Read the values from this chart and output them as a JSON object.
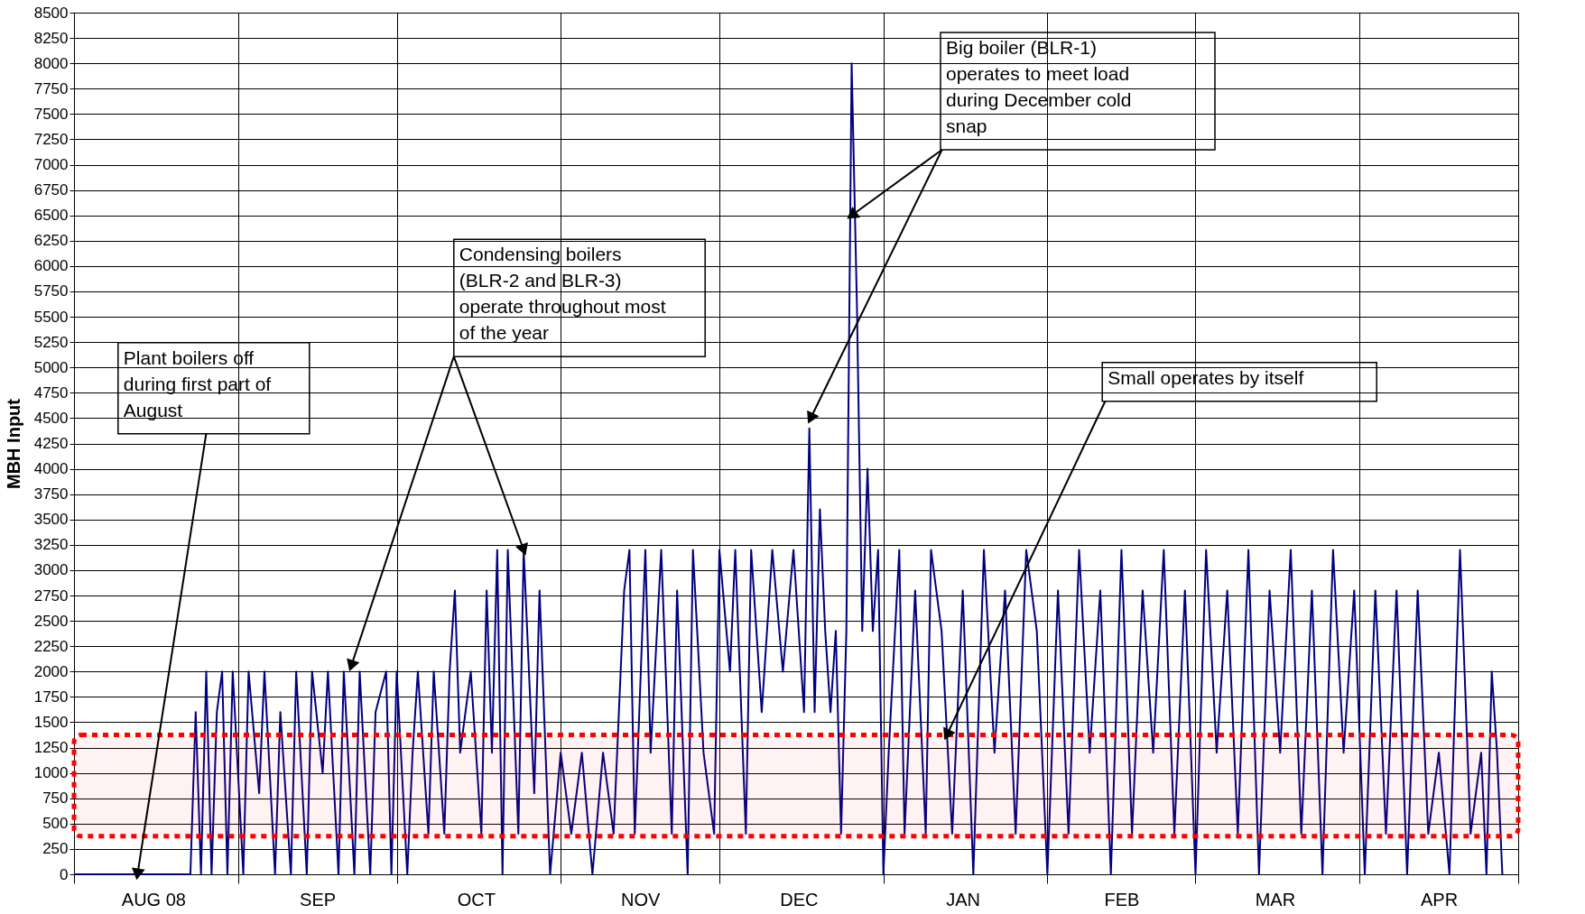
{
  "chart_data": {
    "type": "line",
    "ylabel": "MBH Input",
    "xlim": [
      "2008-08-01",
      "2009-05-01"
    ],
    "xticks": [
      {
        "value": "2008-08-01",
        "label": null
      },
      {
        "value": "2008-08-16",
        "label": "AUG 08"
      },
      {
        "value": "2008-09-01",
        "label": null
      },
      {
        "value": "2008-09-16",
        "label": "SEP"
      },
      {
        "value": "2008-10-01",
        "label": null
      },
      {
        "value": "2008-10-16",
        "label": "OCT"
      },
      {
        "value": "2008-11-01",
        "label": null
      },
      {
        "value": "2008-11-16",
        "label": "NOV"
      },
      {
        "value": "2008-12-01",
        "label": null
      },
      {
        "value": "2008-12-16",
        "label": "DEC"
      },
      {
        "value": "2009-01-01",
        "label": null
      },
      {
        "value": "2009-01-16",
        "label": "JAN"
      },
      {
        "value": "2009-02-01",
        "label": null
      },
      {
        "value": "2009-02-15",
        "label": "FEB"
      },
      {
        "value": "2009-03-01",
        "label": null
      },
      {
        "value": "2009-03-16",
        "label": "MAR"
      },
      {
        "value": "2009-04-01",
        "label": null
      },
      {
        "value": "2009-04-16",
        "label": "APR"
      },
      {
        "value": "2009-05-01",
        "label": null
      }
    ],
    "ylim": [
      0,
      8500
    ],
    "yticks": [
      0,
      250,
      500,
      750,
      1000,
      1250,
      1500,
      1750,
      2000,
      2250,
      2500,
      2750,
      3000,
      3250,
      3500,
      3750,
      4000,
      4250,
      4500,
      4750,
      5000,
      5250,
      5500,
      5750,
      6000,
      6250,
      6500,
      6750,
      7000,
      7250,
      7500,
      7750,
      8000,
      8250,
      8500
    ],
    "grid": true,
    "marker": "none",
    "line_style": "solid",
    "series": [
      {
        "color": "#000080",
        "x": [
          "2008-08-01",
          "2008-08-23",
          "2008-08-24",
          "2008-08-25",
          "2008-08-26",
          "2008-08-27",
          "2008-08-28",
          "2008-08-29",
          "2008-08-30",
          "2008-08-31",
          "2008-09-02",
          "2008-09-03",
          "2008-09-05",
          "2008-09-06",
          "2008-09-08",
          "2008-09-09",
          "2008-09-11",
          "2008-09-12",
          "2008-09-14",
          "2008-09-15",
          "2008-09-17",
          "2008-09-18",
          "2008-09-20",
          "2008-09-21",
          "2008-09-23",
          "2008-09-24",
          "2008-09-26",
          "2008-09-27",
          "2008-09-29",
          "2008-09-30",
          "2008-10-01",
          "2008-10-03",
          "2008-10-04",
          "2008-10-05",
          "2008-10-07",
          "2008-10-08",
          "2008-10-10",
          "2008-10-11",
          "2008-10-12",
          "2008-10-13",
          "2008-10-15",
          "2008-10-17",
          "2008-10-18",
          "2008-10-19",
          "2008-10-20",
          "2008-10-21",
          "2008-10-22",
          "2008-10-24",
          "2008-10-25",
          "2008-10-27",
          "2008-10-28",
          "2008-10-30",
          "2008-11-01",
          "2008-11-03",
          "2008-11-05",
          "2008-11-07",
          "2008-11-09",
          "2008-11-11",
          "2008-11-13",
          "2008-11-14",
          "2008-11-15",
          "2008-11-17",
          "2008-11-18",
          "2008-11-20",
          "2008-11-22",
          "2008-11-23",
          "2008-11-25",
          "2008-11-26",
          "2008-11-28",
          "2008-11-30",
          "2008-12-01",
          "2008-12-03",
          "2008-12-04",
          "2008-12-06",
          "2008-12-07",
          "2008-12-09",
          "2008-12-11",
          "2008-12-13",
          "2008-12-15",
          "2008-12-17",
          "2008-12-18",
          "2008-12-19",
          "2008-12-20",
          "2008-12-21",
          "2008-12-22",
          "2008-12-23",
          "2008-12-24",
          "2008-12-25",
          "2008-12-26",
          "2008-12-27",
          "2008-12-28",
          "2008-12-29",
          "2008-12-30",
          "2008-12-31",
          "2009-01-01",
          "2009-01-02",
          "2009-01-04",
          "2009-01-05",
          "2009-01-07",
          "2009-01-09",
          "2009-01-10",
          "2009-01-12",
          "2009-01-14",
          "2009-01-16",
          "2009-01-18",
          "2009-01-20",
          "2009-01-22",
          "2009-01-24",
          "2009-01-26",
          "2009-01-28",
          "2009-01-30",
          "2009-02-01",
          "2009-02-03",
          "2009-02-05",
          "2009-02-07",
          "2009-02-09",
          "2009-02-11",
          "2009-02-13",
          "2009-02-15",
          "2009-02-17",
          "2009-02-19",
          "2009-02-21",
          "2009-02-23",
          "2009-02-25",
          "2009-02-27",
          "2009-03-01",
          "2009-03-03",
          "2009-03-05",
          "2009-03-07",
          "2009-03-09",
          "2009-03-11",
          "2009-03-13",
          "2009-03-15",
          "2009-03-17",
          "2009-03-19",
          "2009-03-21",
          "2009-03-23",
          "2009-03-25",
          "2009-03-27",
          "2009-03-29",
          "2009-03-31",
          "2009-04-02",
          "2009-04-04",
          "2009-04-06",
          "2009-04-08",
          "2009-04-10",
          "2009-04-12",
          "2009-04-14",
          "2009-04-16",
          "2009-04-18",
          "2009-04-20",
          "2009-04-22",
          "2009-04-24",
          "2009-04-25",
          "2009-04-26",
          "2009-04-27",
          "2009-04-28"
        ],
        "values": [
          0,
          0,
          1600,
          0,
          2000,
          0,
          1600,
          2000,
          0,
          2000,
          0,
          2000,
          800,
          2000,
          0,
          1600,
          0,
          2000,
          0,
          2000,
          1000,
          2000,
          0,
          2000,
          0,
          2000,
          0,
          1600,
          2000,
          0,
          2000,
          0,
          1200,
          2000,
          400,
          2000,
          400,
          2000,
          2800,
          1200,
          2000,
          400,
          2800,
          1200,
          3200,
          0,
          3200,
          400,
          3200,
          800,
          2800,
          0,
          1200,
          400,
          1200,
          0,
          1200,
          400,
          2800,
          3200,
          400,
          3200,
          1200,
          3200,
          400,
          2800,
          0,
          3200,
          1200,
          400,
          3200,
          2000,
          3200,
          400,
          3200,
          1600,
          3200,
          2000,
          3200,
          1600,
          4400,
          1600,
          3600,
          2400,
          1600,
          2400,
          400,
          2400,
          8000,
          5600,
          2400,
          4000,
          2400,
          3200,
          0,
          1200,
          3200,
          400,
          2800,
          400,
          3200,
          2400,
          400,
          2800,
          0,
          3200,
          1200,
          2800,
          400,
          3200,
          2400,
          0,
          2800,
          400,
          3200,
          1200,
          2800,
          0,
          3200,
          400,
          2800,
          1200,
          3200,
          400,
          2800,
          0,
          3200,
          1200,
          2800,
          400,
          3200,
          0,
          2800,
          1200,
          3200,
          400,
          2800,
          0,
          3200,
          1200,
          2800,
          0,
          2800,
          400,
          2800,
          0,
          2800,
          400,
          1200,
          0,
          3200,
          400,
          1200,
          0,
          2000,
          1200,
          0
        ]
      }
    ],
    "bands": [
      {
        "axis": "y",
        "from": 375,
        "to": 1375,
        "color": "#ff0000"
      }
    ],
    "annotations": [
      {
        "text": "Plant boilers off during first part of August",
        "x": "2008-08-13",
        "y": 0
      },
      {
        "text": "Condensing boilers (BLR-2 and BLR-3) operate throughout most of the year",
        "x": "2008-10-25",
        "y": 3200
      },
      {
        "text": "Big boiler (BLR-1) operates to meet load during December cold snap",
        "x": "2008-12-26",
        "y": 6500
      },
      {
        "text": "Small operates by itself",
        "x": "2009-01-13",
        "y": 1375
      }
    ]
  }
}
